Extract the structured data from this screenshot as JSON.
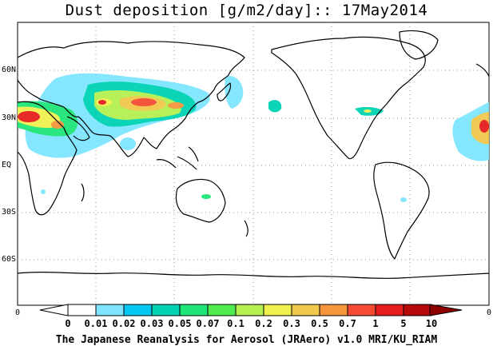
{
  "title": "Dust deposition [g/m2/day]:: 17May2014",
  "latitude_labels": [
    "60N",
    "30N",
    "EQ",
    "30S",
    "60S"
  ],
  "longitude_edge_labels": [
    "0",
    "0"
  ],
  "colorbar": {
    "labels": [
      "0",
      "0.01",
      "0.02",
      "0.03",
      "0.05",
      "0.07",
      "0.1",
      "0.2",
      "0.3",
      "0.5",
      "0.7",
      "1",
      "5",
      "10"
    ],
    "colors": [
      "#ffffff",
      "#7fe5ff",
      "#00c8f0",
      "#00d2b4",
      "#1ee678",
      "#50eb50",
      "#b4f050",
      "#f0f050",
      "#f0c84b",
      "#f5963c",
      "#f54b32",
      "#e61e1e",
      "#b40a0a",
      "#8c0000"
    ]
  },
  "credit": "The Japanese Reanalysis for Aerosol (JRAero) v1.0 MRI/KU_RIAM",
  "date": "17May2014",
  "variable": "Dust deposition",
  "units": "g/m2/day"
}
